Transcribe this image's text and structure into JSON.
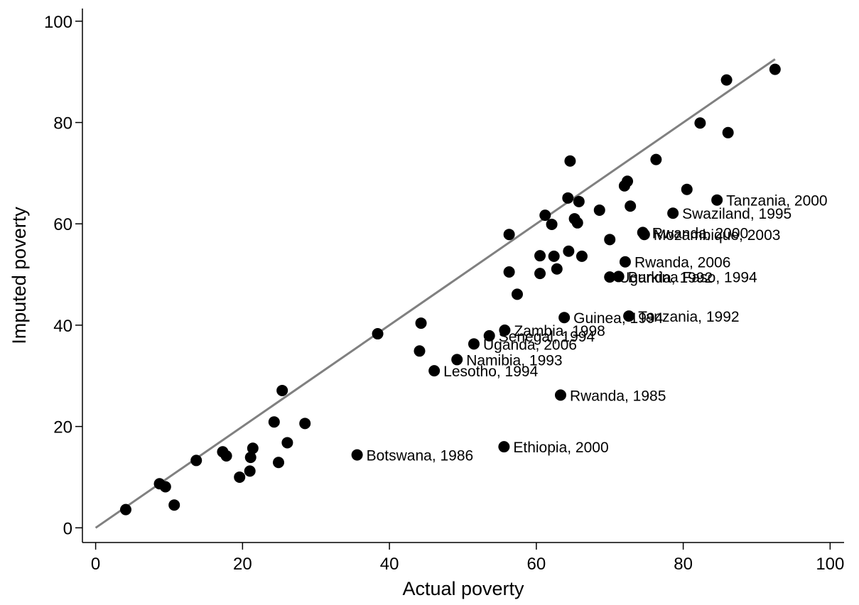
{
  "chart_data": {
    "type": "scatter",
    "xlabel": "Actual poverty",
    "ylabel": "Imputed poverty",
    "xlim": [
      -1.8,
      101.9
    ],
    "ylim": [
      -2.9,
      102.5
    ],
    "xticks": [
      0,
      20,
      40,
      60,
      80,
      100
    ],
    "yticks": [
      0,
      20,
      40,
      60,
      80,
      100
    ],
    "color": "#000000",
    "x": [
      4.1,
      8.7,
      9.5,
      10.7,
      13.7,
      17.3,
      17.8,
      21.4,
      21.1,
      21.0,
      19.6,
      24.3,
      24.9,
      25.4,
      26.1,
      28.5,
      35.6,
      38.4,
      44.3,
      44.1,
      46.1,
      49.2,
      51.5,
      53.6,
      55.7,
      55.6,
      63.3,
      63.8,
      72.6,
      70.0,
      71.2,
      72.1,
      74.5,
      74.7,
      78.6,
      84.6,
      56.3,
      56.3,
      57.4,
      60.5,
      60.5,
      61.2,
      62.1,
      62.4,
      62.8,
      64.3,
      64.6,
      64.4,
      65.2,
      65.6,
      65.8,
      66.2,
      68.6,
      70.0,
      72.0,
      72.4,
      72.8,
      76.3,
      80.5,
      82.3,
      85.9,
      86.1,
      92.5
    ],
    "y": [
      3.6,
      8.7,
      8.1,
      4.5,
      13.3,
      15.0,
      14.2,
      15.7,
      13.9,
      11.2,
      10.0,
      20.9,
      12.9,
      27.1,
      16.8,
      20.6,
      14.4,
      38.3,
      40.4,
      34.9,
      31.0,
      33.2,
      36.3,
      37.9,
      39.0,
      16.0,
      26.2,
      41.5,
      41.8,
      49.5,
      49.6,
      52.5,
      58.3,
      57.9,
      62.1,
      64.7,
      57.9,
      50.5,
      46.1,
      53.7,
      50.2,
      61.7,
      59.9,
      53.6,
      51.1,
      65.1,
      72.4,
      54.6,
      61.0,
      60.2,
      64.4,
      53.6,
      62.7,
      56.9,
      67.5,
      68.4,
      63.5,
      72.7,
      66.8,
      79.9,
      88.4,
      78.0,
      90.5
    ],
    "labels": [
      null,
      null,
      null,
      null,
      null,
      null,
      null,
      null,
      null,
      null,
      null,
      null,
      null,
      null,
      null,
      null,
      "Botswana, 1986",
      null,
      null,
      null,
      "Lesotho, 1994",
      "Namibia, 1993",
      "Uganda, 2006",
      "Senegal, 1994",
      "Zambia, 1998",
      "Ethiopia, 2000",
      "Rwanda, 1985",
      "Guinea, 1994",
      "Tanzania, 1992",
      "Uganda, 1992",
      "Burkina Faso, 1994",
      "Rwanda, 2006",
      "Rwanda, 2000",
      "Mozambique, 2003",
      "Swaziland, 1995",
      "Tanzania, 2000",
      null,
      null,
      null,
      null,
      null,
      null,
      null,
      null,
      null,
      null,
      null,
      null,
      null,
      null,
      null,
      null,
      null,
      null,
      null,
      null,
      null,
      null,
      null,
      null,
      null,
      null,
      null
    ],
    "line": {
      "x": [
        0,
        92.5
      ],
      "y": [
        0,
        92.5
      ],
      "color": "#808080"
    }
  }
}
